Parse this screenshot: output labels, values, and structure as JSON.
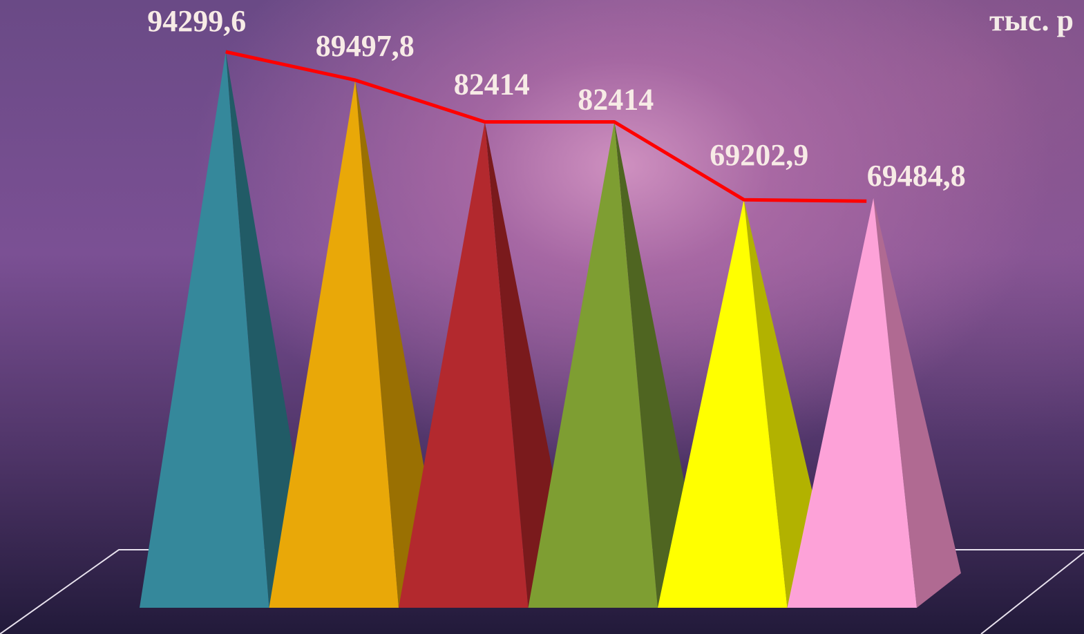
{
  "unit_label": "тыс. р",
  "chart_data": {
    "type": "bar",
    "style": "3d-pyramid",
    "categories": [
      "",
      "",
      "",
      "",
      "",
      ""
    ],
    "values": [
      94299.6,
      89497.8,
      82414,
      82414,
      69202.9,
      69484.8
    ],
    "value_labels": [
      "94299,6",
      "89497,8",
      "82414",
      "82414",
      "69202,9",
      "69484,8"
    ],
    "colors": [
      "#35889b",
      "#e9a808",
      "#b3292e",
      "#7e9e32",
      "#ffff00",
      "#fda2d8"
    ],
    "side_colors": [
      "#215b66",
      "#9a7002",
      "#7a1a1c",
      "#4f6521",
      "#b2b200",
      "#b06a92"
    ],
    "trend_line": {
      "color": "#ff0000",
      "values": [
        94299.6,
        89497.8,
        82414,
        82414,
        69202.9,
        69484.8
      ]
    },
    "title": "",
    "xlabel": "",
    "ylabel": "",
    "ylim": [
      0,
      100000
    ],
    "grid": false,
    "legend": "none"
  }
}
